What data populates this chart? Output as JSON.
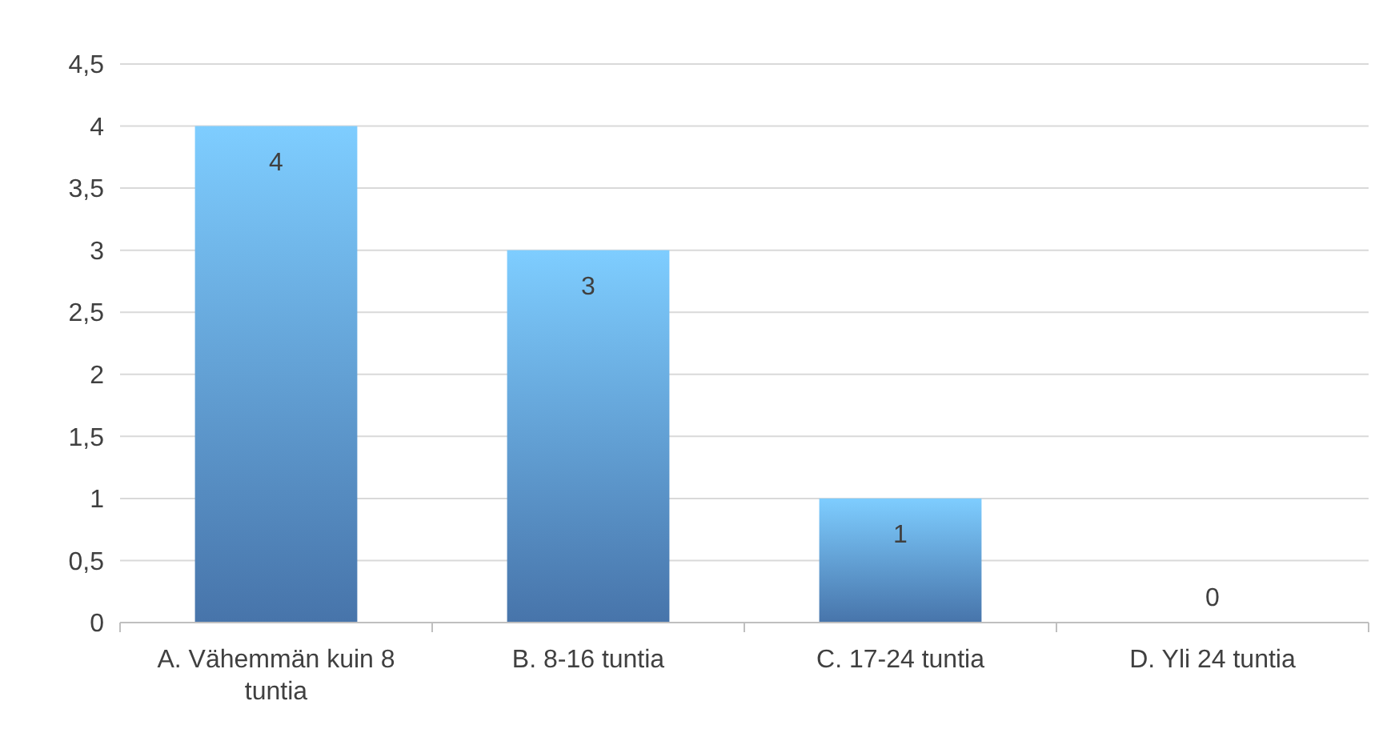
{
  "chart_data": {
    "type": "bar",
    "categories": [
      "A. Vähemmän kuin 8 tuntia",
      "B. 8-16 tuntia",
      "C. 17-24 tuntia",
      "D. Yli 24 tuntia"
    ],
    "values": [
      4,
      3,
      1,
      0
    ],
    "color": "#4f81bd",
    "ylim": [
      0,
      4.5
    ],
    "yticks": [
      0,
      {
        "value": 0.5,
        "label": "0,5"
      },
      1,
      {
        "value": 1.5,
        "label": "1,5"
      },
      2,
      {
        "value": 2.5,
        "label": "2,5"
      },
      3,
      {
        "value": 3.5,
        "label": "3,5"
      },
      4,
      {
        "value": 4.5,
        "label": "4,5"
      }
    ],
    "grid": "y",
    "data_labels": true
  }
}
